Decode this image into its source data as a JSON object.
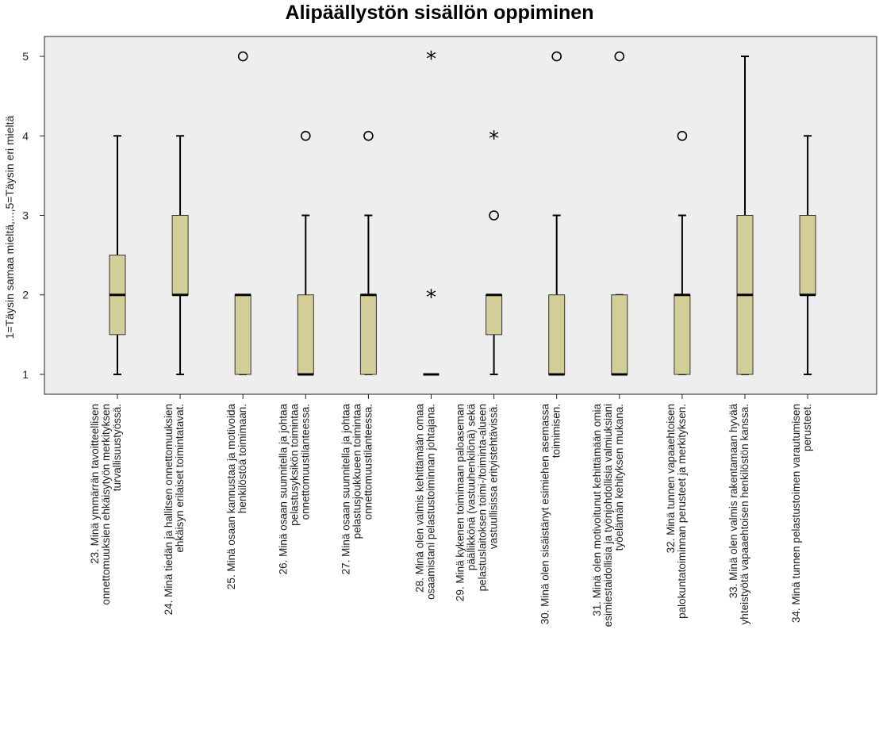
{
  "chart_data": {
    "type": "box",
    "title": "Alipäällystön sisällön oppiminen",
    "ylabel": "1=Täysin samaa mieltä,...,5=Täysin eri mieltä",
    "ylim": [
      0.75,
      5.25
    ],
    "yticks": [
      1,
      2,
      3,
      4,
      5
    ],
    "colors": {
      "plot_bg": "#EEEEEE",
      "box_fill": "#D3CE97",
      "line": "#000000"
    },
    "boxes": [
      {
        "label": [
          "23. Minä ymmärrän tavoitteellisen",
          "onnettomuuksien ehkäisytyön merkityksen",
          "turvallisuustyössä."
        ],
        "min": 1,
        "q1": 1.5,
        "median": 2,
        "q3": 2.5,
        "max": 4,
        "outliers": [],
        "extremes": []
      },
      {
        "label": [
          "24. Minä tiedän ja hallitsen onnettomuuksien",
          "ehkäisyn erilaiset toimintatavat."
        ],
        "min": 1,
        "q1": 2,
        "median": 2,
        "q3": 3,
        "max": 4,
        "outliers": [],
        "extremes": []
      },
      {
        "label": [
          "25. Minä osaan kannustaa ja motivoida",
          "henkilöstöä toimimaan."
        ],
        "min": 1,
        "q1": 1,
        "median": 2,
        "q3": 2,
        "max": 2,
        "outliers": [
          5
        ],
        "extremes": []
      },
      {
        "label": [
          "26. Minä osaan suunnitella ja johtaa",
          "pelastusyksikön toimintaa",
          "onnettomuustilanteessa."
        ],
        "min": 1,
        "q1": 1,
        "median": 1,
        "q3": 2,
        "max": 3,
        "outliers": [
          4
        ],
        "extremes": []
      },
      {
        "label": [
          "27. Minä osaan suunnitella ja johtaa",
          "pelastusjoukkueen toimintaa",
          "onnettomuustilanteessa."
        ],
        "min": 1,
        "q1": 1,
        "median": 2,
        "q3": 2,
        "max": 3,
        "outliers": [
          4
        ],
        "extremes": []
      },
      {
        "label": [
          "28. Minä olen valmis kehittämään omaa",
          "osaamistani pelastustoiminnan johtajana."
        ],
        "min": 1,
        "q1": 1,
        "median": 1,
        "q3": 1,
        "max": 1,
        "outliers": [],
        "extremes": [
          2,
          5
        ]
      },
      {
        "label": [
          "29. Minä kykenen toimimaan paloaseman",
          "päällikkönä (vastuuhenkilönä) sekä",
          "pelastuslaitoksen toimi-/toiminta-alueen",
          "vastuullisissa erityistehtävissä."
        ],
        "min": 1,
        "q1": 1.5,
        "median": 2,
        "q3": 2,
        "max": 2,
        "outliers": [
          3
        ],
        "extremes": [
          4
        ]
      },
      {
        "label": [
          "30. Minä olen sisäistänyt esimiehen asemassa",
          "toimimisen."
        ],
        "min": 1,
        "q1": 1,
        "median": 1,
        "q3": 2,
        "max": 3,
        "outliers": [
          5
        ],
        "extremes": []
      },
      {
        "label": [
          "31. Minä olen motivoitunut kehittämään omia",
          "esimiestaidollisia ja työnjohdollisia valmiuksiani",
          "työelämän kehityksen mukana."
        ],
        "min": 1,
        "q1": 1,
        "median": 1,
        "q3": 2,
        "max": 2,
        "outliers": [
          5
        ],
        "extremes": []
      },
      {
        "label": [
          "32. Minä tunnen vapaaehtoisen",
          "palokuntatoiminnan perusteet ja merkityksen."
        ],
        "min": 1,
        "q1": 1,
        "median": 2,
        "q3": 2,
        "max": 3,
        "outliers": [
          4
        ],
        "extremes": []
      },
      {
        "label": [
          "33. Minä olen valmis rakentamaan hyvää",
          "yhteistyötä vapaaehtoisen henkilöstön kanssa."
        ],
        "min": 1,
        "q1": 1,
        "median": 2,
        "q3": 3,
        "max": 5,
        "outliers": [],
        "extremes": []
      },
      {
        "label": [
          "34. Minä tunnen pelastustoimen varautumisen",
          "perusteet."
        ],
        "min": 1,
        "q1": 2,
        "median": 2,
        "q3": 3,
        "max": 4,
        "outliers": [],
        "extremes": []
      }
    ]
  }
}
